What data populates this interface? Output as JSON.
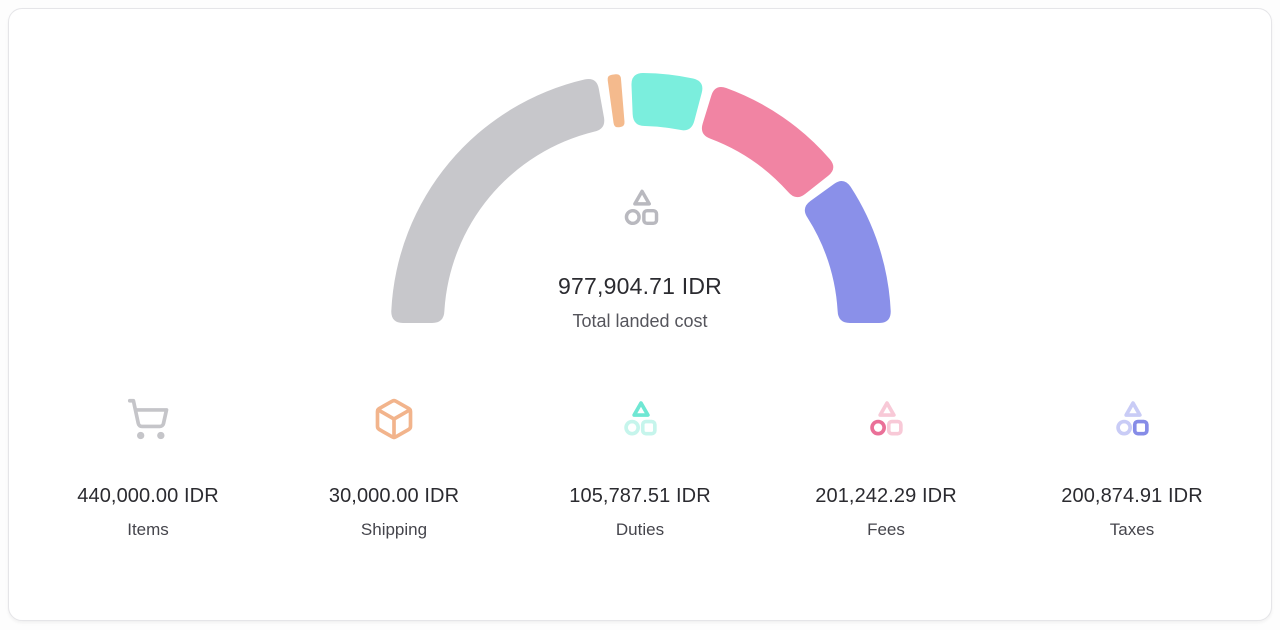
{
  "chart_data": {
    "type": "gauge",
    "title": "Total landed cost",
    "arc": {
      "span_degrees": 180,
      "direction": "left-to-right",
      "start_angle": 180,
      "end_angle": 0
    },
    "center": {
      "value_text": "977,904.71 IDR",
      "value": 977904.71,
      "currency": "IDR",
      "label": "Total landed cost",
      "icon": "shapes-icon",
      "icon_color": "#b9b9bf"
    },
    "segments": [
      {
        "label": "Items",
        "value": 440000.0,
        "value_text": "440,000.00 IDR",
        "fraction": 0.45,
        "color": "#c7c7cb",
        "icon": "shopping-cart-icon",
        "icon_color": "#c5c5c9",
        "icon_muted": "#c5c5c9",
        "icon_highlight_shape": null
      },
      {
        "label": "Shipping",
        "value": 30000.0,
        "value_text": "30,000.00 IDR",
        "fraction": 0.031,
        "color": "#f4ba8d",
        "icon": "package-icon",
        "icon_color": "#f2b48c",
        "icon_muted": "#f2b48c",
        "icon_highlight_shape": null
      },
      {
        "label": "Duties",
        "value": 105787.51,
        "value_text": "105,787.51 IDR",
        "fraction": 0.108,
        "color": "#7beedd",
        "icon": "shapes-icon",
        "icon_color": "#6fe7d3",
        "icon_muted": "#c6f5ec",
        "icon_highlight_shape": "triangle"
      },
      {
        "label": "Fees",
        "value": 201242.29,
        "value_text": "201,242.29 IDR",
        "fraction": 0.206,
        "color": "#f184a3",
        "icon": "shapes-icon",
        "icon_color": "#ea7098",
        "icon_muted": "#f8c9d7",
        "icon_highlight_shape": "circle"
      },
      {
        "label": "Taxes",
        "value": 200874.91,
        "value_text": "200,874.91 IDR",
        "fraction": 0.205,
        "color": "#8a90e9",
        "icon": "shapes-icon",
        "icon_color": "#868ce7",
        "icon_muted": "#c9ccf6",
        "icon_highlight_shape": "square"
      }
    ]
  }
}
